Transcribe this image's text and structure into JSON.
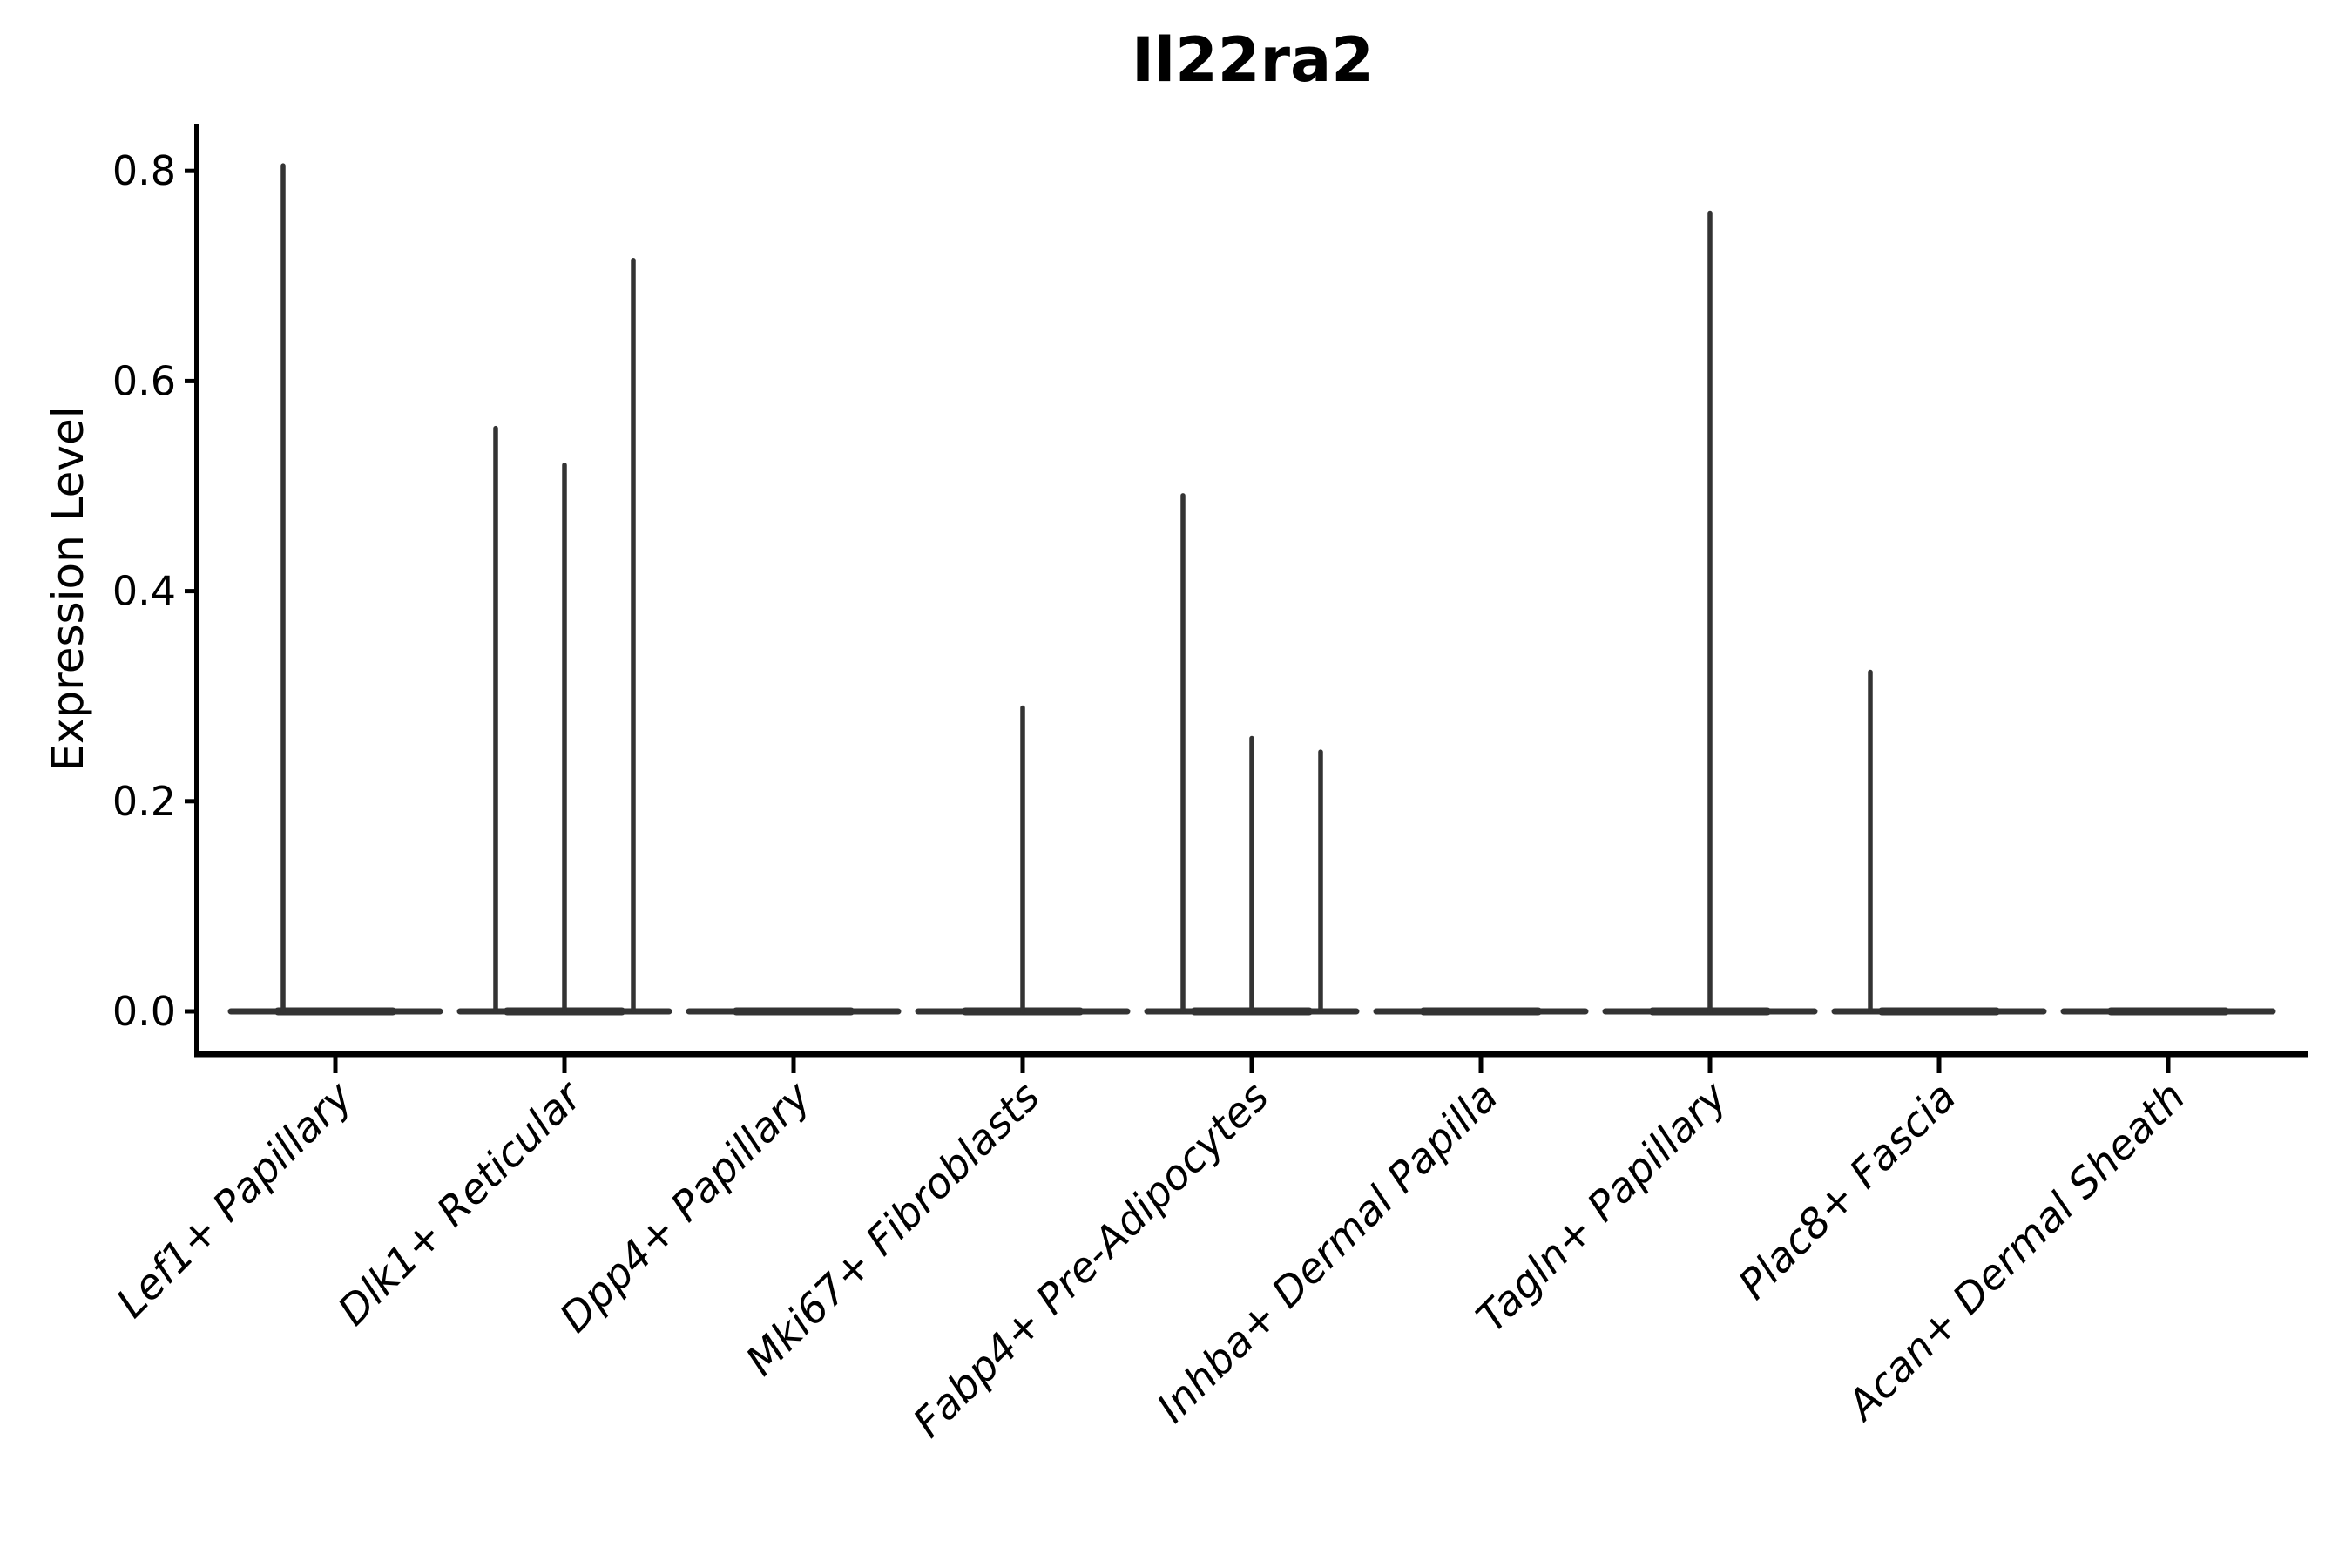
{
  "figure": {
    "background": "#ffffff"
  },
  "chart_data": {
    "type": "violin",
    "title": "Il22ra2",
    "ylabel": "Expression Level",
    "xlabel": "",
    "yticks": [
      0.0,
      0.2,
      0.4,
      0.6,
      0.8
    ],
    "ylim": [
      -0.04,
      0.845
    ],
    "grid": false,
    "legend_position": "none",
    "axis_color": "#000000",
    "violin_color": "#333333",
    "categories": [
      "Lef1+ Papillary",
      "Dlk1+ Reticular",
      "Dpp4+ Papillary",
      "Mki67+ Fibroblasts",
      "Fabp4+ Pre-Adipocytes",
      "Inhba+ Dermal Papilla",
      "Tagln+ Papillary",
      "Plac8+ Fascia",
      "Acan+ Dermal Sheath"
    ],
    "violins": [
      {
        "category": "Lef1+ Papillary",
        "spikes": [
          {
            "group_offset": -60,
            "value": 0.805
          }
        ]
      },
      {
        "category": "Dlk1+ Reticular",
        "spikes": [
          {
            "group_offset": -79,
            "value": 0.555
          },
          {
            "group_offset": 0,
            "value": 0.52
          },
          {
            "group_offset": 79,
            "value": 0.715
          }
        ]
      },
      {
        "category": "Dpp4+ Papillary",
        "spikes": []
      },
      {
        "category": "Mki67+ Fibroblasts",
        "spikes": [
          {
            "group_offset": 0,
            "value": 0.289
          }
        ]
      },
      {
        "category": "Fabp4+ Pre-Adipocytes",
        "spikes": [
          {
            "group_offset": -79,
            "value": 0.491
          },
          {
            "group_offset": 0,
            "value": 0.26
          },
          {
            "group_offset": 79,
            "value": 0.247
          }
        ]
      },
      {
        "category": "Inhba+ Dermal Papilla",
        "spikes": []
      },
      {
        "category": "Tagln+ Papillary",
        "spikes": [
          {
            "group_offset": 0,
            "value": 0.76
          }
        ]
      },
      {
        "category": "Plac8+ Fascia",
        "spikes": [
          {
            "group_offset": -79,
            "value": 0.323
          }
        ]
      },
      {
        "category": "Acan+ Dermal Sheath",
        "spikes": []
      }
    ]
  }
}
